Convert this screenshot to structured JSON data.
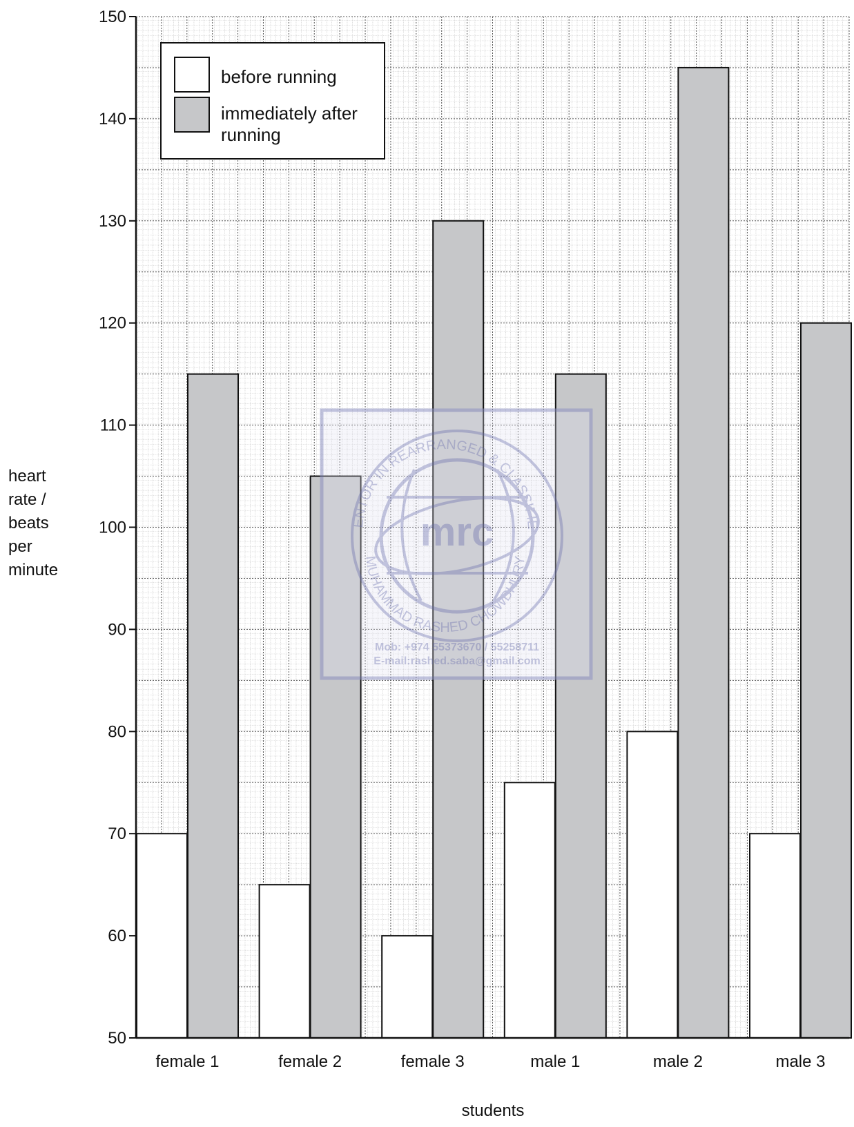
{
  "chart_data": {
    "type": "bar",
    "categories": [
      "female 1",
      "female 2",
      "female 3",
      "male 1",
      "male 2",
      "male 3"
    ],
    "series": [
      {
        "name": "before running",
        "values": [
          70,
          65,
          60,
          75,
          80,
          70
        ],
        "color": "#ffffff"
      },
      {
        "name": "immediately after running",
        "values": [
          115,
          105,
          130,
          115,
          145,
          120
        ],
        "color": "#c6c7c9"
      }
    ],
    "xlabel": "students",
    "ylabel": "heart rate / beats per minute",
    "ylabel_lines": [
      "heart",
      "rate /",
      "beats",
      "per",
      "minute"
    ],
    "ylim": [
      50,
      150
    ],
    "yticks": [
      50,
      60,
      70,
      80,
      90,
      100,
      110,
      120,
      130,
      140,
      150
    ],
    "legend_lines": [
      [
        "before running"
      ],
      [
        "immediately after",
        "running"
      ]
    ],
    "grid": true,
    "legend_position": "top-left"
  },
  "watermark": {
    "center_text": "mrc",
    "ring_text_top": "MENTOR IN REARRANGED & CLASSIFIED",
    "ring_text_bottom": "MUHAMMAD RASHED CHOWDHURY",
    "line1": "Mob: +974 55373670 / 55258711",
    "line2": "E-mail:rashed.saba@gmail.com",
    "color": "#8e92c2"
  }
}
